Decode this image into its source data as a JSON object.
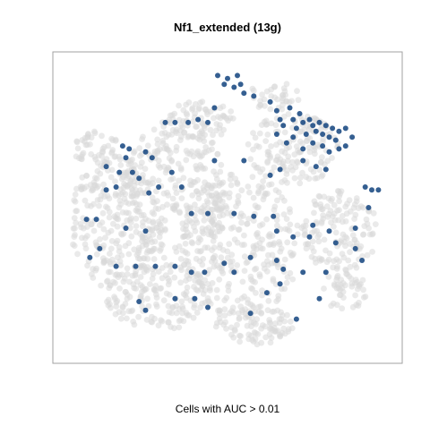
{
  "chart_data": {
    "type": "scatter",
    "title": "Nf1_extended (13g)",
    "xlabel": "Cells with AUC > 0.01",
    "ylabel": "",
    "xlim": [
      0,
      1
    ],
    "ylim": [
      0,
      1
    ],
    "grid": false,
    "legend": "none",
    "colors": {
      "background_cells": "#d9d9d9",
      "high_auc_cells": "#1f4e85"
    },
    "series": [
      {
        "role": "background",
        "color": "#d9d9d9",
        "clusters": [
          {
            "cx": 0.1,
            "cy": 0.7,
            "rx": 0.07,
            "ry": 0.06,
            "n": 45
          },
          {
            "cx": 0.16,
            "cy": 0.45,
            "rx": 0.14,
            "ry": 0.23,
            "n": 260
          },
          {
            "cx": 0.34,
            "cy": 0.55,
            "rx": 0.16,
            "ry": 0.25,
            "n": 300
          },
          {
            "cx": 0.29,
            "cy": 0.2,
            "rx": 0.16,
            "ry": 0.12,
            "n": 160
          },
          {
            "cx": 0.42,
            "cy": 0.8,
            "rx": 0.1,
            "ry": 0.07,
            "n": 70
          },
          {
            "cx": 0.54,
            "cy": 0.37,
            "rx": 0.18,
            "ry": 0.25,
            "n": 300
          },
          {
            "cx": 0.58,
            "cy": 0.1,
            "rx": 0.12,
            "ry": 0.07,
            "n": 90
          },
          {
            "cx": 0.7,
            "cy": 0.7,
            "rx": 0.14,
            "ry": 0.12,
            "n": 150
          },
          {
            "cx": 0.84,
            "cy": 0.42,
            "rx": 0.12,
            "ry": 0.14,
            "n": 140
          },
          {
            "cx": 0.86,
            "cy": 0.22,
            "rx": 0.07,
            "ry": 0.08,
            "n": 50
          },
          {
            "cx": 0.64,
            "cy": 0.88,
            "rx": 0.08,
            "ry": 0.05,
            "n": 35
          }
        ]
      },
      {
        "role": "cells_auc_above_threshold",
        "color": "#1f4e85",
        "points": [
          [
            0.47,
            0.95
          ],
          [
            0.5,
            0.94
          ],
          [
            0.53,
            0.95
          ],
          [
            0.54,
            0.92
          ],
          [
            0.55,
            0.89
          ],
          [
            0.52,
            0.91
          ],
          [
            0.49,
            0.92
          ],
          [
            0.31,
            0.79
          ],
          [
            0.34,
            0.79
          ],
          [
            0.38,
            0.79
          ],
          [
            0.41,
            0.8
          ],
          [
            0.44,
            0.79
          ],
          [
            0.46,
            0.84
          ],
          [
            0.58,
            0.88
          ],
          [
            0.63,
            0.86
          ],
          [
            0.65,
            0.83
          ],
          [
            0.66,
            0.8
          ],
          [
            0.67,
            0.78
          ],
          [
            0.69,
            0.84
          ],
          [
            0.7,
            0.8
          ],
          [
            0.71,
            0.77
          ],
          [
            0.72,
            0.82
          ],
          [
            0.73,
            0.79
          ],
          [
            0.74,
            0.75
          ],
          [
            0.75,
            0.8
          ],
          [
            0.76,
            0.78
          ],
          [
            0.77,
            0.76
          ],
          [
            0.78,
            0.79
          ],
          [
            0.79,
            0.75
          ],
          [
            0.8,
            0.78
          ],
          [
            0.81,
            0.74
          ],
          [
            0.82,
            0.77
          ],
          [
            0.83,
            0.73
          ],
          [
            0.84,
            0.76
          ],
          [
            0.86,
            0.77
          ],
          [
            0.88,
            0.74
          ],
          [
            0.76,
            0.72
          ],
          [
            0.79,
            0.71
          ],
          [
            0.81,
            0.69
          ],
          [
            0.84,
            0.7
          ],
          [
            0.86,
            0.71
          ],
          [
            0.73,
            0.7
          ],
          [
            0.7,
            0.74
          ],
          [
            0.68,
            0.72
          ],
          [
            0.65,
            0.75
          ],
          [
            0.18,
            0.71
          ],
          [
            0.2,
            0.7
          ],
          [
            0.25,
            0.69
          ],
          [
            0.27,
            0.67
          ],
          [
            0.19,
            0.67
          ],
          [
            0.13,
            0.64
          ],
          [
            0.17,
            0.62
          ],
          [
            0.21,
            0.62
          ],
          [
            0.23,
            0.6
          ],
          [
            0.16,
            0.57
          ],
          [
            0.26,
            0.55
          ],
          [
            0.29,
            0.57
          ],
          [
            0.33,
            0.62
          ],
          [
            0.36,
            0.57
          ],
          [
            0.46,
            0.66
          ],
          [
            0.55,
            0.66
          ],
          [
            0.63,
            0.61
          ],
          [
            0.66,
            0.63
          ],
          [
            0.73,
            0.66
          ],
          [
            0.77,
            0.64
          ],
          [
            0.8,
            0.63
          ],
          [
            0.92,
            0.57
          ],
          [
            0.94,
            0.56
          ],
          [
            0.96,
            0.56
          ],
          [
            0.93,
            0.5
          ],
          [
            0.89,
            0.43
          ],
          [
            0.81,
            0.42
          ],
          [
            0.76,
            0.44
          ],
          [
            0.13,
            0.56
          ],
          [
            0.07,
            0.46
          ],
          [
            0.1,
            0.46
          ],
          [
            0.19,
            0.43
          ],
          [
            0.25,
            0.42
          ],
          [
            0.39,
            0.48
          ],
          [
            0.44,
            0.48
          ],
          [
            0.52,
            0.48
          ],
          [
            0.58,
            0.47
          ],
          [
            0.64,
            0.47
          ],
          [
            0.65,
            0.42
          ],
          [
            0.7,
            0.4
          ],
          [
            0.75,
            0.4
          ],
          [
            0.83,
            0.38
          ],
          [
            0.89,
            0.36
          ],
          [
            0.91,
            0.32
          ],
          [
            0.8,
            0.28
          ],
          [
            0.73,
            0.28
          ],
          [
            0.67,
            0.29
          ],
          [
            0.65,
            0.32
          ],
          [
            0.57,
            0.33
          ],
          [
            0.52,
            0.28
          ],
          [
            0.49,
            0.31
          ],
          [
            0.43,
            0.28
          ],
          [
            0.39,
            0.28
          ],
          [
            0.34,
            0.3
          ],
          [
            0.28,
            0.3
          ],
          [
            0.22,
            0.3
          ],
          [
            0.16,
            0.3
          ],
          [
            0.08,
            0.33
          ],
          [
            0.11,
            0.36
          ],
          [
            0.23,
            0.18
          ],
          [
            0.25,
            0.15
          ],
          [
            0.34,
            0.19
          ],
          [
            0.4,
            0.19
          ],
          [
            0.44,
            0.16
          ],
          [
            0.57,
            0.14
          ],
          [
            0.62,
            0.21
          ],
          [
            0.66,
            0.24
          ],
          [
            0.71,
            0.12
          ],
          [
            0.78,
            0.19
          ]
        ]
      }
    ]
  }
}
